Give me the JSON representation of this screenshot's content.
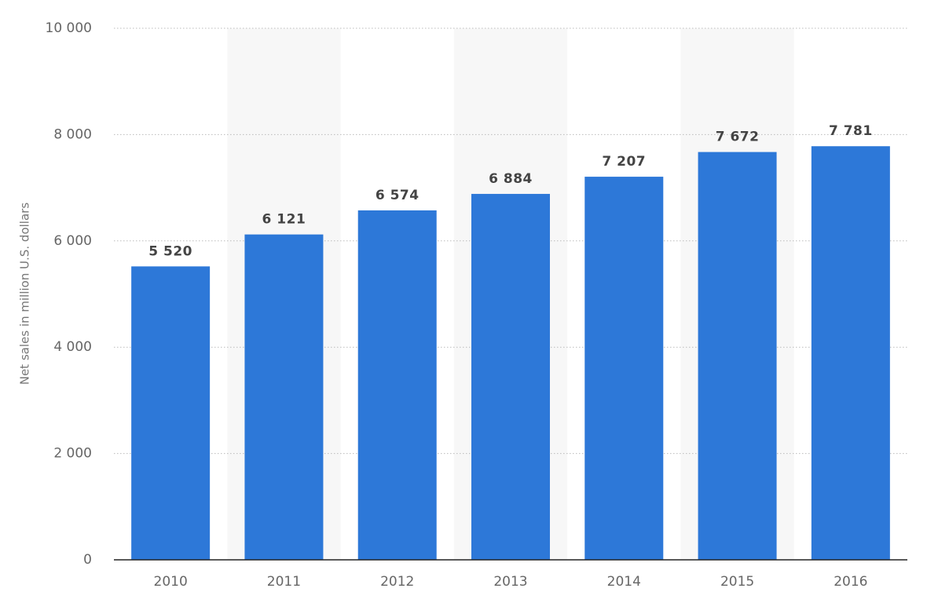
{
  "chart_data": {
    "type": "bar",
    "y_label": "Net sales in million U.S. dollars",
    "categories": [
      "2010",
      "2011",
      "2012",
      "2013",
      "2014",
      "2015",
      "2016"
    ],
    "values": [
      5520,
      6121,
      6574,
      6884,
      7207,
      7672,
      7781
    ],
    "value_labels": [
      "5 520",
      "6 121",
      "6 574",
      "6 884",
      "7 207",
      "7 672",
      "7 781"
    ],
    "color": "#2d78d8",
    "ylim": [
      0,
      10000
    ],
    "yticks": [
      0,
      {
        "value": 2000,
        "label": "2 000"
      },
      {
        "value": 4000,
        "label": "4 000"
      },
      {
        "value": 6000,
        "label": "6 000"
      },
      {
        "value": 8000,
        "label": "8 000"
      },
      {
        "value": 10000,
        "label": "10 000"
      }
    ],
    "grid": true
  }
}
